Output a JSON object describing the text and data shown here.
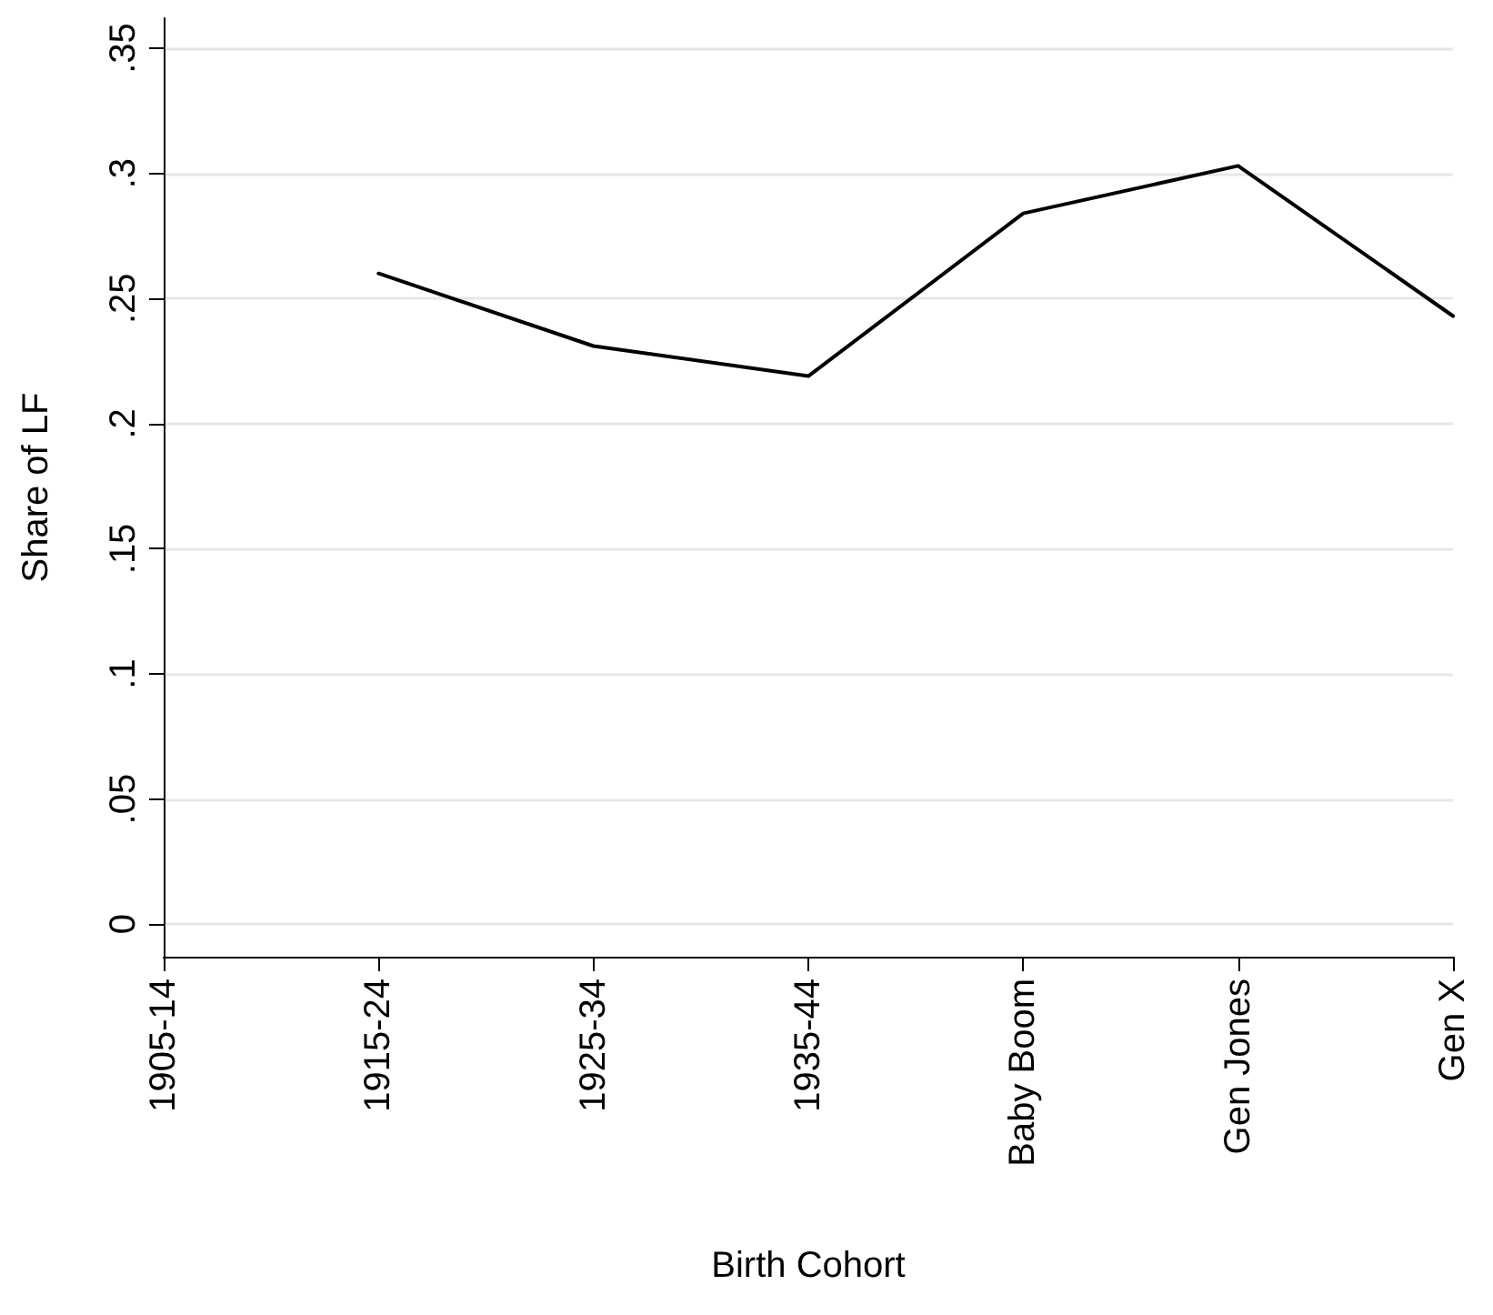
{
  "chart_data": {
    "type": "line",
    "xlabel": "Birth Cohort",
    "ylabel": "Share of LF",
    "categories": [
      "1905-14",
      "1915-24",
      "1925-34",
      "1935-44",
      "Baby Boom",
      "Gen Jones",
      "Gen X"
    ],
    "series": [
      {
        "color": "#000000",
        "values": [
          null,
          0.26,
          0.231,
          0.219,
          0.284,
          0.303,
          0.243
        ]
      }
    ],
    "ylim": [
      -0.013,
      0.362
    ],
    "yticks": [
      {
        "value": 0,
        "label": "0"
      },
      {
        "value": 0.05,
        "label": ".05"
      },
      {
        "value": 0.1,
        "label": ".1"
      },
      {
        "value": 0.15,
        "label": ".15"
      },
      {
        "value": 0.2,
        "label": ".2"
      },
      {
        "value": 0.25,
        "label": ".25"
      },
      {
        "value": 0.3,
        "label": ".3"
      },
      {
        "value": 0.35,
        "label": ".35"
      }
    ],
    "grid": "y",
    "marker": "none",
    "line_style": "solid"
  }
}
